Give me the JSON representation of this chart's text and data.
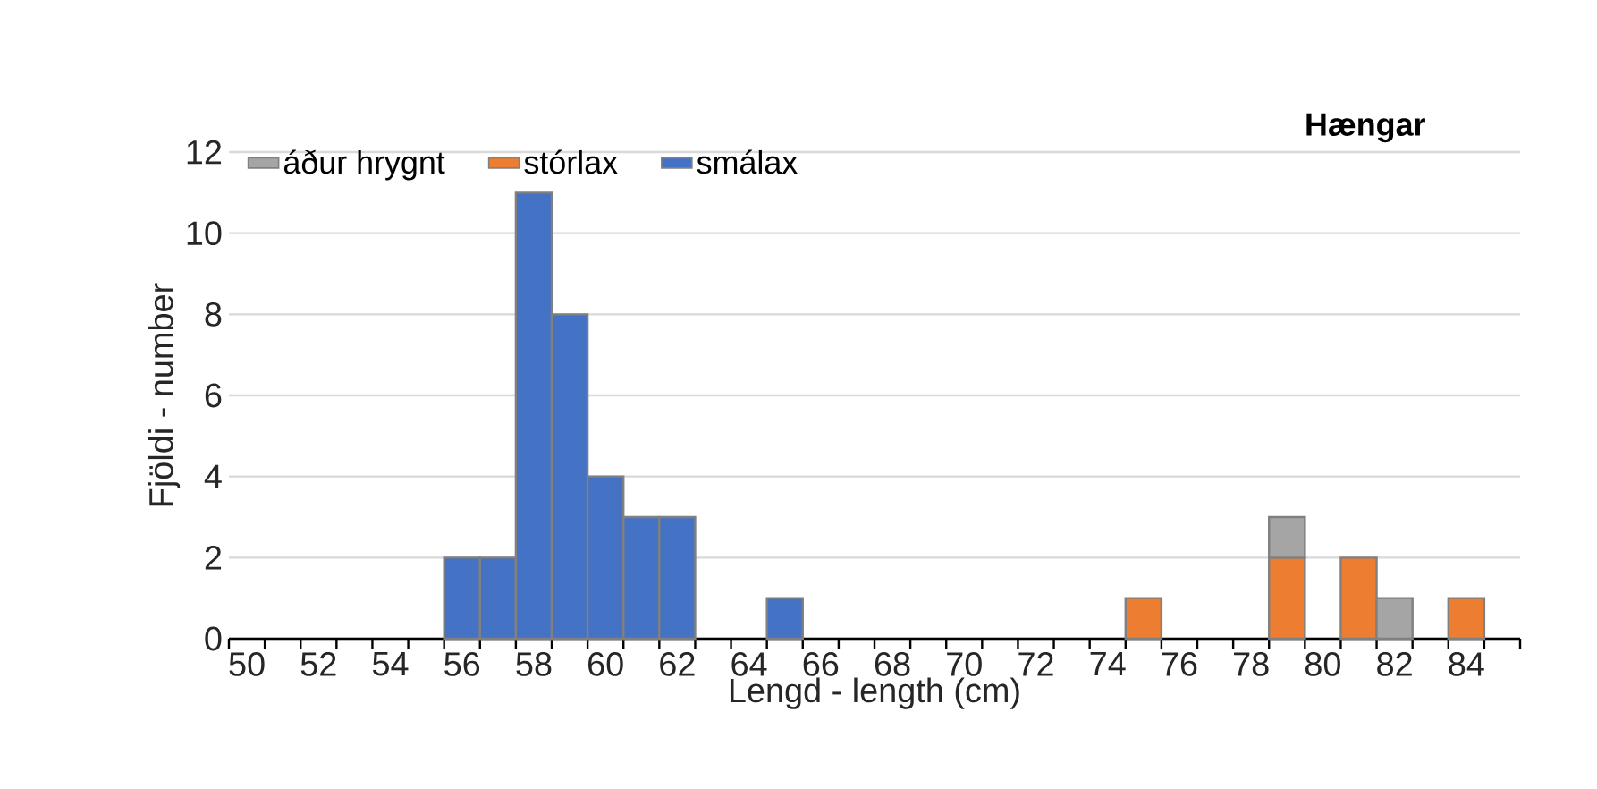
{
  "chart_data": {
    "type": "bar",
    "title": "Hængar",
    "xlabel": "Lengd - length (cm)",
    "ylabel": "Fjöldi - number",
    "categories": [
      "50",
      null,
      "52",
      null,
      "54",
      null,
      "56",
      null,
      "58",
      null,
      "60",
      null,
      "62",
      null,
      "64",
      null,
      "66",
      null,
      "68",
      null,
      "70",
      null,
      "72",
      null,
      "74",
      null,
      "76",
      null,
      "78",
      null,
      "80",
      null,
      "82",
      null,
      "84",
      null
    ],
    "series": [
      {
        "name": "smálax",
        "color": "#4472c4",
        "values": [
          null,
          null,
          null,
          null,
          null,
          null,
          2,
          2,
          11,
          8,
          4,
          3,
          3,
          null,
          null,
          1,
          null,
          null,
          null,
          null,
          null,
          null,
          null,
          null,
          null,
          null,
          null,
          null,
          null,
          null,
          null,
          null,
          null,
          null,
          null,
          null
        ]
      },
      {
        "name": "stórlax",
        "color": "#ed7d31",
        "values": [
          null,
          null,
          null,
          null,
          null,
          null,
          null,
          null,
          null,
          null,
          null,
          null,
          null,
          null,
          null,
          null,
          null,
          null,
          null,
          null,
          null,
          null,
          null,
          null,
          null,
          1,
          null,
          null,
          null,
          2,
          null,
          2,
          null,
          null,
          1,
          null
        ]
      },
      {
        "name": "áður hrygnt",
        "color": "#a5a5a5",
        "values": [
          null,
          null,
          null,
          null,
          null,
          null,
          null,
          null,
          null,
          null,
          null,
          null,
          null,
          null,
          null,
          null,
          null,
          null,
          null,
          null,
          null,
          null,
          null,
          null,
          null,
          null,
          null,
          null,
          null,
          1,
          null,
          null,
          1,
          null,
          null,
          null
        ]
      }
    ],
    "stacked": true,
    "ylim": [
      0,
      12
    ],
    "yticks": [
      0,
      2,
      4,
      6,
      8,
      10,
      12
    ],
    "grid": "y",
    "legend": "top left"
  }
}
